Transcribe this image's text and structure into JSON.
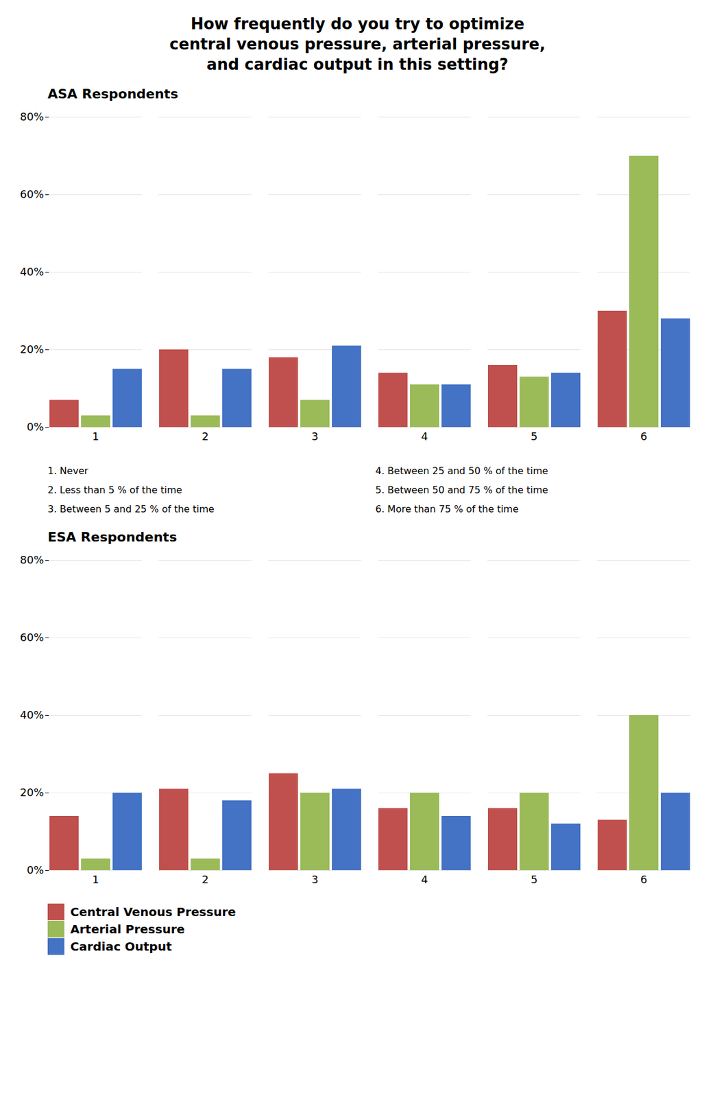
{
  "chart_data": [
    {
      "type": "bar",
      "title": "How frequently do you try to optimize\ncentral venous pressure, arterial pressure,\nand cardiac output in this setting?",
      "subtitle": "ASA Respondents",
      "categories": [
        1,
        2,
        3,
        4,
        5,
        6
      ],
      "series": [
        {
          "name": "Central Venous Pressure",
          "color": "#C0504D",
          "values": [
            7,
            20,
            18,
            14,
            16,
            30
          ]
        },
        {
          "name": "Arterial Pressure",
          "color": "#9BBB59",
          "values": [
            3,
            3,
            7,
            11,
            13,
            70
          ]
        },
        {
          "name": "Cardiac Output",
          "color": "#4472C4",
          "values": [
            15,
            15,
            21,
            11,
            14,
            28
          ]
        }
      ],
      "ylim": [
        0,
        80
      ],
      "yticks": [
        {
          "value": 0,
          "label": "0%"
        },
        {
          "value": 20,
          "label": "20%"
        },
        {
          "value": 40,
          "label": "40%"
        },
        {
          "value": 60,
          "label": "60%"
        },
        {
          "value": 80,
          "label": "80%"
        }
      ],
      "grid": true,
      "annotations": [
        "1.   Never",
        "2.   Less than 5 % of the time",
        "3.   Between 5 and 25 % of the time",
        "4.   Between 25 and 50 % of the time",
        "5.   Between 50 and 75 % of the time",
        "6.   More than 75 % of the time"
      ]
    },
    {
      "type": "bar",
      "subtitle": "ESA Respondents",
      "categories": [
        1,
        2,
        3,
        4,
        5,
        6
      ],
      "series": [
        {
          "name": "Central Venous Pressure",
          "color": "#C0504D",
          "values": [
            14,
            21,
            25,
            16,
            16,
            13
          ]
        },
        {
          "name": "Arterial Pressure",
          "color": "#9BBB59",
          "values": [
            3,
            3,
            20,
            20,
            20,
            40
          ]
        },
        {
          "name": "Cardiac Output",
          "color": "#4472C4",
          "values": [
            20,
            18,
            21,
            14,
            12,
            20
          ]
        }
      ],
      "ylim": [
        0,
        80
      ],
      "yticks": [
        {
          "value": 0,
          "label": "0%"
        },
        {
          "value": 20,
          "label": "20%"
        },
        {
          "value": 40,
          "label": "40%"
        },
        {
          "value": 60,
          "label": "60%"
        },
        {
          "value": 80,
          "label": "80%"
        }
      ],
      "grid": true,
      "legend": "bottom"
    }
  ]
}
